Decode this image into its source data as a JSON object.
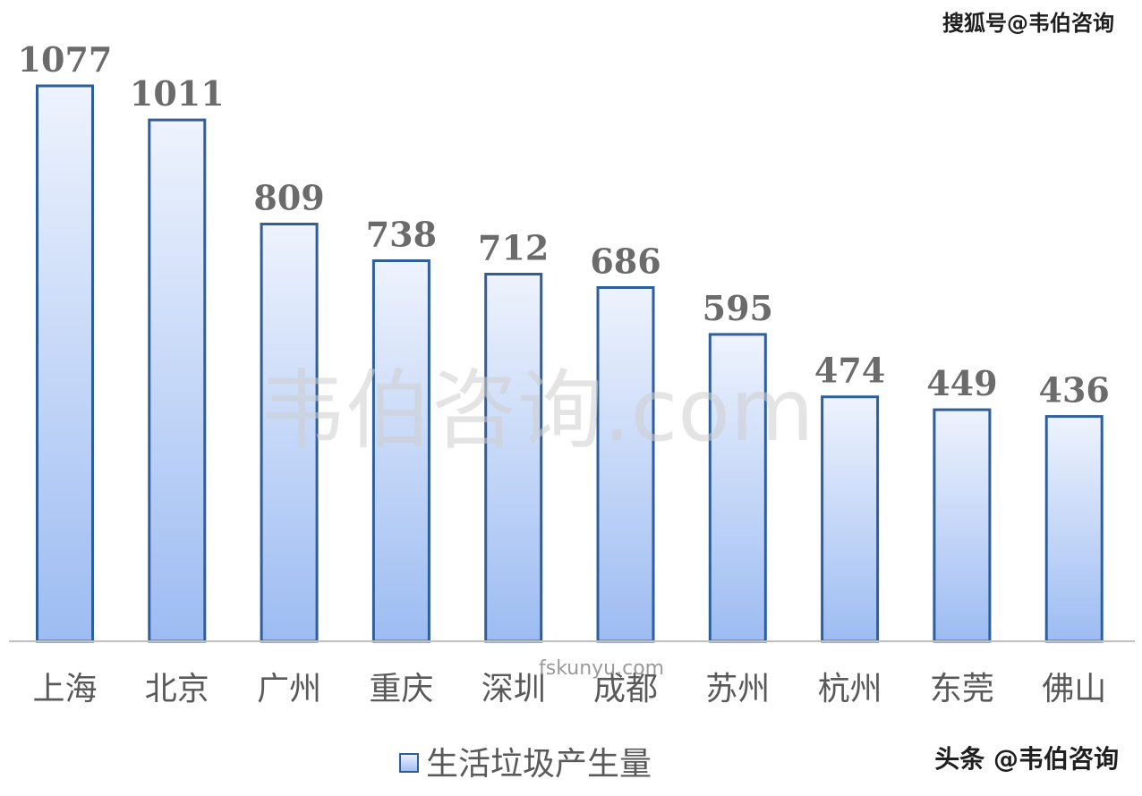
{
  "chart_data": {
    "type": "bar",
    "categories": [
      "上海",
      "北京",
      "广州",
      "重庆",
      "深圳",
      "成都",
      "苏州",
      "杭州",
      "东莞",
      "佛山"
    ],
    "series": [
      {
        "name": "生活垃圾产生量",
        "values": [
          1077,
          1011,
          809,
          738,
          712,
          686,
          595,
          474,
          449,
          436
        ]
      }
    ],
    "ylim": [
      0,
      1077
    ],
    "grid": false,
    "legend_position": "bottom-center",
    "colors": {
      "bar_top": "#eef3fd",
      "bar_bottom": "#9dbcf2",
      "bar_stroke": "#2e5f9a",
      "axis": "#bfbfbf"
    }
  },
  "watermarks": {
    "top_right": "搜狐号@韦伯咨询",
    "center": "韦伯咨询.com",
    "center_small": "fskunyu.com",
    "bottom_right": "头条 @韦伯咨询"
  }
}
